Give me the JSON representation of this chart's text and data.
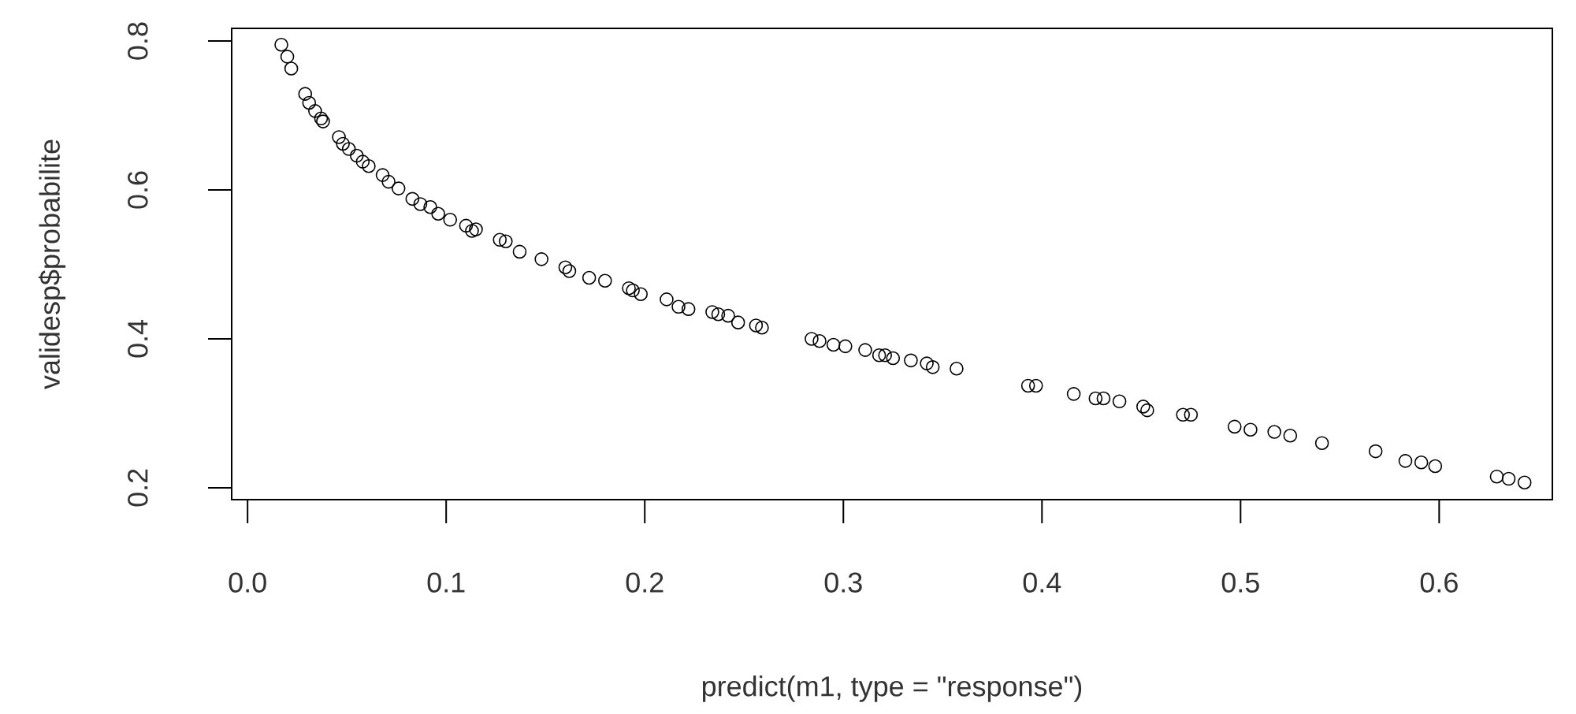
{
  "chart_data": {
    "type": "scatter",
    "xlabel": "predict(m1, type = \"response\")",
    "ylabel": "validesp$probabilite",
    "xlim": [
      -0.008,
      0.657
    ],
    "ylim": [
      0.184,
      0.817
    ],
    "xticks": [
      {
        "value": 0,
        "label": "0.0"
      },
      0.1,
      0.2,
      0.3,
      0.4,
      0.5,
      0.6
    ],
    "yticks": [
      0.2,
      0.4,
      0.6,
      0.8
    ],
    "marker": "circle",
    "color": "#000000",
    "x": [
      0.017,
      0.02,
      0.022,
      0.029,
      0.031,
      0.034,
      0.037,
      0.038,
      0.046,
      0.048,
      0.051,
      0.055,
      0.058,
      0.061,
      0.068,
      0.071,
      0.076,
      0.083,
      0.087,
      0.092,
      0.096,
      0.102,
      0.11,
      0.113,
      0.115,
      0.127,
      0.13,
      0.137,
      0.148,
      0.16,
      0.162,
      0.172,
      0.18,
      0.192,
      0.194,
      0.198,
      0.211,
      0.217,
      0.222,
      0.234,
      0.237,
      0.242,
      0.247,
      0.256,
      0.259,
      0.284,
      0.288,
      0.295,
      0.301,
      0.311,
      0.318,
      0.321,
      0.325,
      0.334,
      0.342,
      0.345,
      0.357,
      0.393,
      0.397,
      0.416,
      0.427,
      0.431,
      0.439,
      0.451,
      0.453,
      0.471,
      0.475,
      0.497,
      0.505,
      0.517,
      0.525,
      0.541,
      0.568,
      0.583,
      0.591,
      0.598,
      0.629,
      0.635,
      0.643
    ],
    "values": [
      0.795,
      0.779,
      0.763,
      0.729,
      0.717,
      0.706,
      0.696,
      0.692,
      0.671,
      0.662,
      0.655,
      0.646,
      0.638,
      0.632,
      0.62,
      0.611,
      0.602,
      0.588,
      0.581,
      0.577,
      0.568,
      0.56,
      0.552,
      0.545,
      0.547,
      0.533,
      0.531,
      0.517,
      0.507,
      0.496,
      0.491,
      0.482,
      0.478,
      0.468,
      0.465,
      0.46,
      0.453,
      0.443,
      0.44,
      0.436,
      0.433,
      0.431,
      0.422,
      0.418,
      0.415,
      0.4,
      0.397,
      0.392,
      0.39,
      0.385,
      0.378,
      0.378,
      0.374,
      0.371,
      0.367,
      0.362,
      0.36,
      0.337,
      0.337,
      0.326,
      0.32,
      0.32,
      0.316,
      0.309,
      0.304,
      0.298,
      0.298,
      0.282,
      0.278,
      0.275,
      0.27,
      0.26,
      0.249,
      0.236,
      0.234,
      0.229,
      0.215,
      0.212,
      0.207
    ]
  }
}
